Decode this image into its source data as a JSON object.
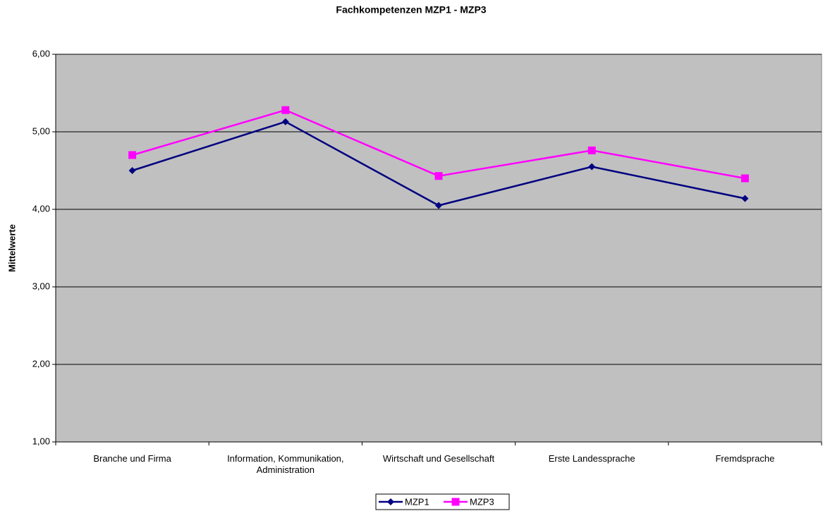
{
  "chart_data": {
    "type": "line",
    "title": "Fachkompetenzen MZP1 - MZP3",
    "ylabel": "Mittelwerte",
    "categories": [
      "Branche und Firma",
      "Information, Kommunikation, Administration",
      "Wirtschaft und Gesellschaft",
      "Erste Landessprache",
      "Fremdsprache"
    ],
    "series": [
      {
        "name": "MZP1",
        "color": "#000080",
        "marker": "diamond",
        "values": [
          4.5,
          5.13,
          4.05,
          4.55,
          4.14
        ]
      },
      {
        "name": "MZP3",
        "color": "#ff00ff",
        "marker": "square",
        "values": [
          4.7,
          5.28,
          4.43,
          4.76,
          4.4
        ]
      }
    ],
    "ylim": [
      1,
      6
    ],
    "yticks": [
      {
        "value": 1,
        "label": "1,00"
      },
      {
        "value": 2,
        "label": "2,00"
      },
      {
        "value": 3,
        "label": "3,00"
      },
      {
        "value": 4,
        "label": "4,00"
      },
      {
        "value": 5,
        "label": "5,00"
      },
      {
        "value": 6,
        "label": "6,00"
      }
    ],
    "grid": true,
    "legend": "bottom"
  }
}
